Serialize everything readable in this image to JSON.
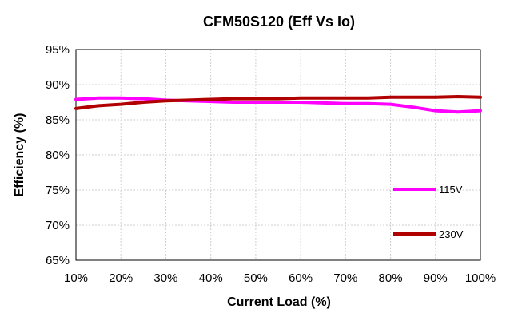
{
  "chart_data": {
    "type": "line",
    "title": "CFM50S120 (Eff Vs Io)",
    "xlabel": "Current Load (%)",
    "ylabel": "Efficiency (%)",
    "x_ticks": [
      "10%",
      "20%",
      "30%",
      "40%",
      "50%",
      "60%",
      "70%",
      "80%",
      "90%",
      "100%"
    ],
    "y_ticks": [
      "65%",
      "70%",
      "75%",
      "80%",
      "85%",
      "90%",
      "95%"
    ],
    "xlim": [
      10,
      100
    ],
    "ylim": [
      65,
      95
    ],
    "grid": true,
    "legend_position": "right",
    "x": [
      10,
      15,
      20,
      25,
      30,
      35,
      40,
      45,
      50,
      55,
      60,
      65,
      70,
      75,
      80,
      85,
      90,
      95,
      100
    ],
    "series": [
      {
        "name": "115V",
        "color": "#ff00ff",
        "values": [
          87.9,
          88.1,
          88.1,
          88.0,
          87.8,
          87.7,
          87.6,
          87.5,
          87.5,
          87.5,
          87.5,
          87.4,
          87.3,
          87.3,
          87.2,
          86.8,
          86.3,
          86.1,
          86.3
        ]
      },
      {
        "name": "230V",
        "color": "#b00000",
        "values": [
          86.6,
          87.0,
          87.2,
          87.5,
          87.7,
          87.8,
          87.9,
          88.0,
          88.0,
          88.0,
          88.1,
          88.1,
          88.1,
          88.1,
          88.2,
          88.2,
          88.2,
          88.3,
          88.2
        ]
      }
    ]
  }
}
